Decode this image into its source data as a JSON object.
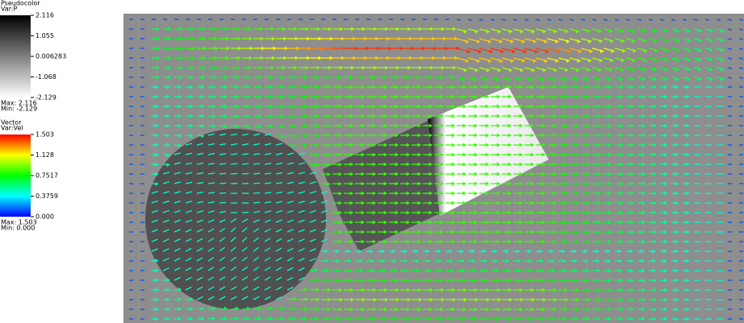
{
  "legends": [
    {
      "title": "Pseudocolor",
      "variable": "Var:P",
      "ticks": [
        "2.116",
        "1.055",
        "0.006283",
        "-1.068",
        "-2.129"
      ],
      "max": "Max: 2.116",
      "min": "Min: -2.129"
    },
    {
      "title": "Vector",
      "variable": "Var:Vel",
      "ticks": [
        "1.503",
        "1.128",
        "0.7517",
        "0.3759",
        "0.000"
      ],
      "max": "Max: 1.503",
      "min": "Min: 0.000"
    }
  ]
}
